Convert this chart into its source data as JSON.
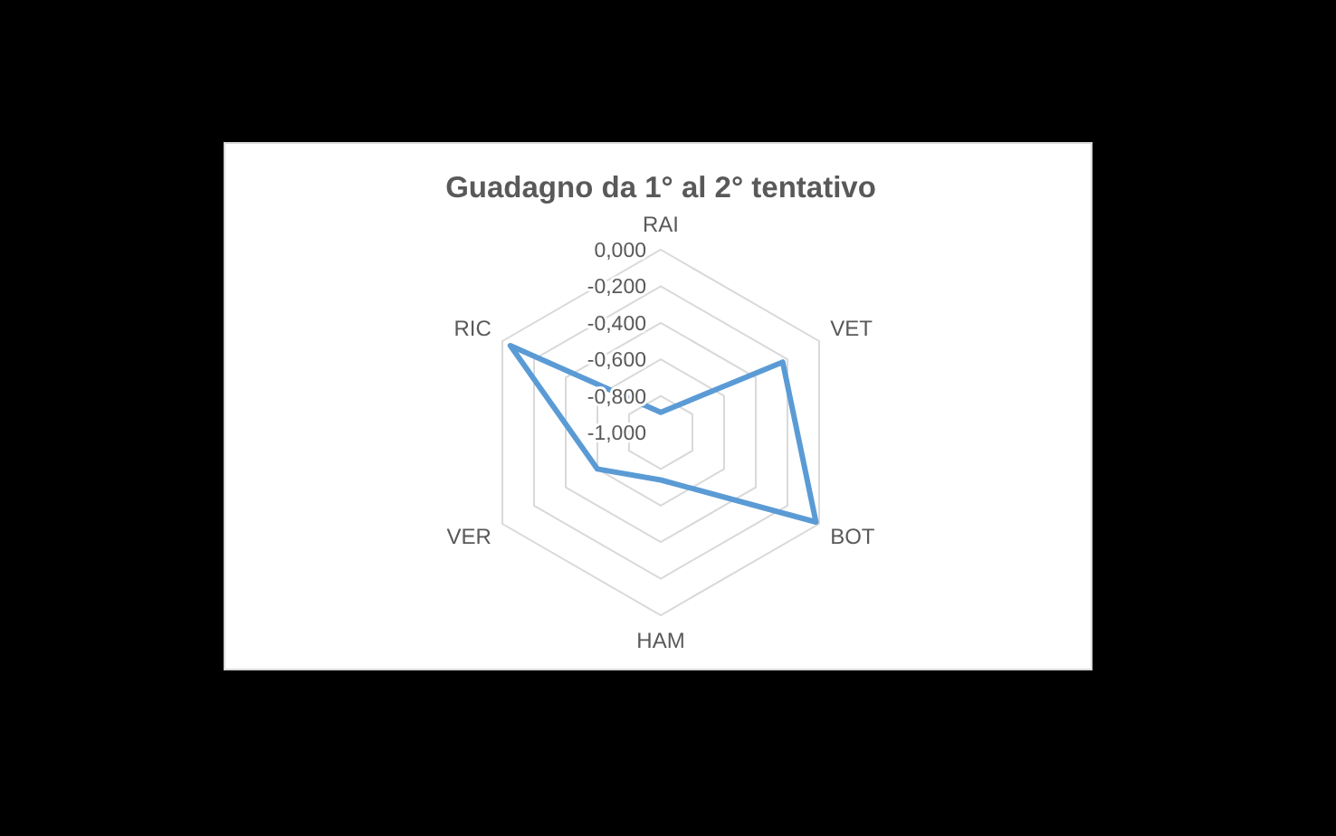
{
  "chart_data": {
    "type": "radar",
    "title": "Guadagno da 1° al 2° tentativo",
    "categories": [
      "RAI",
      "VET",
      "BOT",
      "HAM",
      "VER",
      "RIC"
    ],
    "series": [
      {
        "color": "#5b9bd5",
        "values": [
          -0.89,
          -0.23,
          -0.02,
          -0.74,
          -0.6,
          -0.05
        ]
      }
    ],
    "ylim": [
      -1,
      0
    ],
    "yticks": [
      {
        "value": 0,
        "label": "0,000"
      },
      {
        "value": -0.2,
        "label": "-0,200"
      },
      {
        "value": -0.4,
        "label": "-0,400"
      },
      {
        "value": -0.6,
        "label": "-0,600"
      },
      {
        "value": -0.8,
        "label": "-0,800"
      },
      {
        "value": -1,
        "label": "-1,000"
      }
    ],
    "grid": true,
    "marker": "none"
  }
}
